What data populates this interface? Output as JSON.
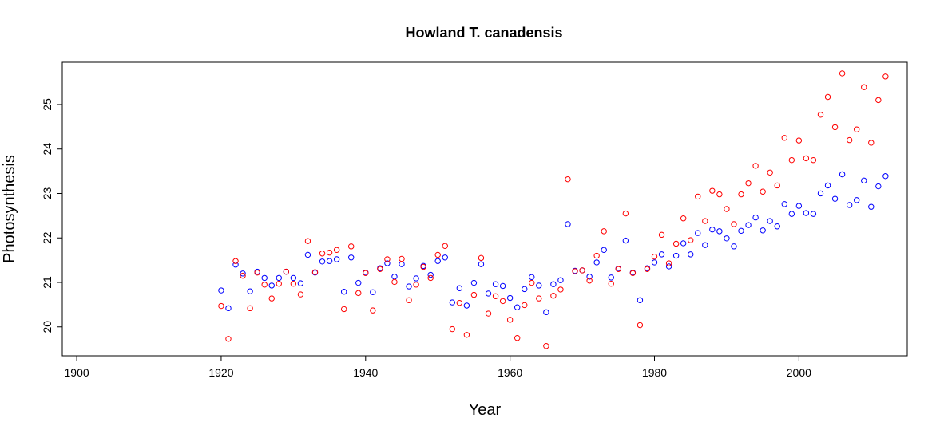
{
  "chart_data": {
    "type": "scatter",
    "title": "Howland T. canadensis",
    "xlabel": "Year",
    "ylabel": "Photosynthesis",
    "xlim": [
      1898,
      2015
    ],
    "ylim": [
      19.35,
      25.95
    ],
    "xticks": [
      1900,
      1920,
      1940,
      1960,
      1980,
      2000
    ],
    "yticks": [
      20,
      21,
      22,
      23,
      24,
      25
    ],
    "grid": false,
    "legend": "none",
    "marker": "open-circle",
    "series": [
      {
        "color": "#0000ff",
        "x": [
          1920,
          1921,
          1922,
          1923,
          1924,
          1925,
          1926,
          1927,
          1928,
          1929,
          1930,
          1931,
          1932,
          1933,
          1934,
          1935,
          1936,
          1937,
          1938,
          1939,
          1940,
          1941,
          1942,
          1943,
          1944,
          1945,
          1946,
          1947,
          1948,
          1949,
          1950,
          1951,
          1952,
          1953,
          1954,
          1955,
          1956,
          1957,
          1958,
          1959,
          1960,
          1961,
          1962,
          1963,
          1964,
          1965,
          1966,
          1967,
          1968,
          1969,
          1970,
          1971,
          1972,
          1973,
          1974,
          1975,
          1976,
          1977,
          1978,
          1979,
          1980,
          1981,
          1982,
          1983,
          1984,
          1985,
          1986,
          1987,
          1988,
          1989,
          1990,
          1991,
          1992,
          1993,
          1994,
          1995,
          1996,
          1997,
          1998,
          1999,
          2000,
          2001,
          2002,
          2003,
          2004,
          2005,
          2006,
          2007,
          2008,
          2009,
          2010,
          2011,
          2012
        ],
        "values": [
          20.82,
          20.42,
          21.4,
          21.2,
          20.8,
          21.24,
          21.1,
          20.93,
          21.1,
          21.24,
          21.1,
          20.98,
          21.62,
          21.22,
          21.47,
          21.48,
          21.52,
          20.79,
          21.56,
          20.99,
          21.22,
          20.78,
          21.32,
          21.43,
          21.13,
          21.41,
          20.91,
          21.09,
          21.37,
          21.17,
          21.48,
          21.56,
          20.55,
          20.87,
          20.48,
          20.99,
          21.41,
          20.75,
          20.96,
          20.92,
          20.65,
          20.44,
          20.85,
          21.12,
          20.93,
          20.33,
          20.96,
          21.05,
          22.31,
          21.26,
          21.27,
          21.13,
          21.45,
          21.73,
          21.11,
          21.31,
          21.94,
          21.22,
          20.6,
          21.32,
          21.45,
          21.63,
          21.36,
          21.6,
          21.88,
          21.63,
          22.11,
          21.84,
          22.19,
          22.15,
          21.99,
          21.81,
          22.16,
          22.29,
          22.46,
          22.17,
          22.38,
          22.26,
          22.76,
          22.54,
          22.72,
          22.56,
          22.54,
          23.0,
          23.18,
          22.88,
          23.43,
          22.74,
          22.85,
          23.29,
          22.7,
          23.16,
          23.39
        ]
      },
      {
        "color": "#ff0000",
        "x": [
          1920,
          1921,
          1922,
          1923,
          1924,
          1925,
          1926,
          1927,
          1928,
          1929,
          1930,
          1931,
          1932,
          1933,
          1934,
          1935,
          1936,
          1937,
          1938,
          1939,
          1940,
          1941,
          1942,
          1943,
          1944,
          1945,
          1946,
          1947,
          1948,
          1949,
          1950,
          1951,
          1952,
          1953,
          1954,
          1955,
          1956,
          1957,
          1958,
          1959,
          1960,
          1961,
          1962,
          1963,
          1964,
          1965,
          1966,
          1967,
          1968,
          1969,
          1970,
          1971,
          1972,
          1973,
          1974,
          1975,
          1976,
          1977,
          1978,
          1979,
          1980,
          1981,
          1982,
          1983,
          1984,
          1985,
          1986,
          1987,
          1988,
          1989,
          1990,
          1991,
          1992,
          1993,
          1994,
          1995,
          1996,
          1997,
          1998,
          1999,
          2000,
          2001,
          2002,
          2003,
          2004,
          2005,
          2006,
          2007,
          2008,
          2009,
          2010,
          2011,
          2012
        ],
        "values": [
          20.47,
          19.73,
          21.48,
          21.15,
          20.42,
          21.22,
          20.95,
          20.64,
          20.97,
          21.24,
          20.97,
          20.73,
          21.93,
          21.23,
          21.65,
          21.67,
          21.73,
          20.4,
          21.81,
          20.76,
          21.21,
          20.37,
          21.3,
          21.52,
          21.01,
          21.53,
          20.6,
          20.95,
          21.35,
          21.1,
          21.62,
          21.82,
          19.95,
          20.54,
          19.82,
          20.72,
          21.55,
          20.3,
          20.69,
          20.58,
          20.16,
          19.75,
          20.49,
          20.99,
          20.64,
          19.57,
          20.7,
          20.84,
          23.32,
          21.25,
          21.27,
          21.04,
          21.6,
          22.15,
          20.97,
          21.3,
          22.55,
          21.21,
          20.04,
          21.3,
          21.58,
          22.07,
          21.43,
          21.87,
          22.44,
          21.95,
          22.93,
          22.38,
          23.06,
          22.98,
          22.65,
          22.31,
          22.98,
          23.23,
          23.62,
          23.04,
          23.47,
          23.18,
          24.25,
          23.75,
          24.19,
          23.79,
          23.75,
          24.77,
          25.17,
          24.49,
          25.7,
          24.2,
          24.44,
          25.39,
          24.14,
          25.1,
          25.63
        ]
      }
    ]
  }
}
